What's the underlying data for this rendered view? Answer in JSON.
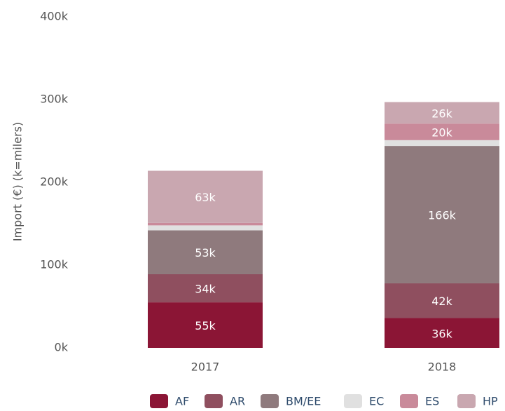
{
  "chart_data": {
    "type": "stacked_bar",
    "y_label": "Import (€) (k=milers)",
    "categories": [
      "2017",
      "2018"
    ],
    "series": [
      {
        "name": "AF",
        "color": "#8b1535",
        "values": [
          55,
          36
        ],
        "value_labels": [
          "55k",
          "36k"
        ]
      },
      {
        "name": "AR",
        "color": "#8f4f5f",
        "values": [
          34,
          42
        ],
        "value_labels": [
          "34k",
          "42k"
        ]
      },
      {
        "name": "BM/EE",
        "color": "#8f7a7d",
        "values": [
          53,
          166
        ],
        "value_labels": [
          "53k",
          "166k"
        ]
      },
      {
        "name": "EC",
        "color": "#e0e0e0",
        "values": [
          6,
          7
        ],
        "value_labels": [
          null,
          null
        ]
      },
      {
        "name": "ES",
        "color": "#c98a9a",
        "values": [
          3,
          20
        ],
        "value_labels": [
          null,
          "20k"
        ]
      },
      {
        "name": "HP",
        "color": "#c9a7b0",
        "values": [
          63,
          26
        ],
        "value_labels": [
          "63k",
          "26k"
        ]
      }
    ],
    "ylim": [
      0,
      400
    ],
    "yticks": [
      {
        "value": 0,
        "label": "0k"
      },
      {
        "value": 100,
        "label": "100k"
      },
      {
        "value": 200,
        "label": "200k"
      },
      {
        "value": 300,
        "label": "300k"
      },
      {
        "value": 400,
        "label": "400k"
      }
    ],
    "legend": "bottom"
  }
}
